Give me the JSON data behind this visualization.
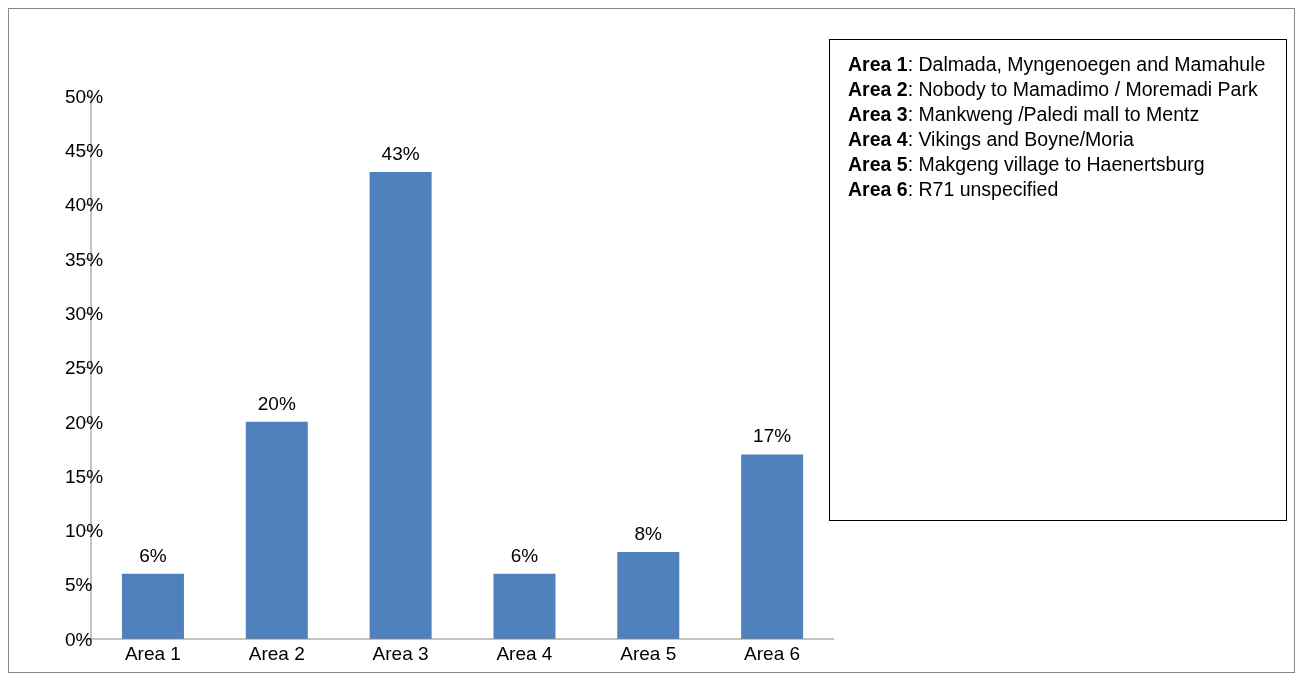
{
  "chart_data": {
    "type": "bar",
    "categories": [
      "Area 1",
      "Area 2",
      "Area 3",
      "Area 4",
      "Area 5",
      "Area 6"
    ],
    "values": [
      6,
      20,
      43,
      6,
      8,
      17
    ],
    "value_labels": [
      "6%",
      "20%",
      "43%",
      "6%",
      "8%",
      "17%"
    ],
    "color": "#4f81bd",
    "ylim": [
      0,
      50
    ],
    "yticks": [
      {
        "value": 0,
        "label": "0%"
      },
      {
        "value": 5,
        "label": "5%"
      },
      {
        "value": 10,
        "label": "10%"
      },
      {
        "value": 15,
        "label": "15%"
      },
      {
        "value": 20,
        "label": "20%"
      },
      {
        "value": 25,
        "label": "25%"
      },
      {
        "value": 30,
        "label": "30%"
      },
      {
        "value": 35,
        "label": "35%"
      },
      {
        "value": 40,
        "label": "40%"
      },
      {
        "value": 45,
        "label": "45%"
      },
      {
        "value": 50,
        "label": "50%"
      }
    ],
    "annotations": [
      "Area 1: Dalmada, Myngenoegen and Mamahule",
      "Area 2: Nobody to Mamadimo / Moremadi Park",
      "Area 3: Mankweng /Paledi mall to Mentz",
      "Area 4: Vikings and Boyne/Moria",
      "Area 5: Makgeng village to Haenertsburg",
      "Area 6: R71 unspecified"
    ],
    "grid": false,
    "legend": false
  }
}
